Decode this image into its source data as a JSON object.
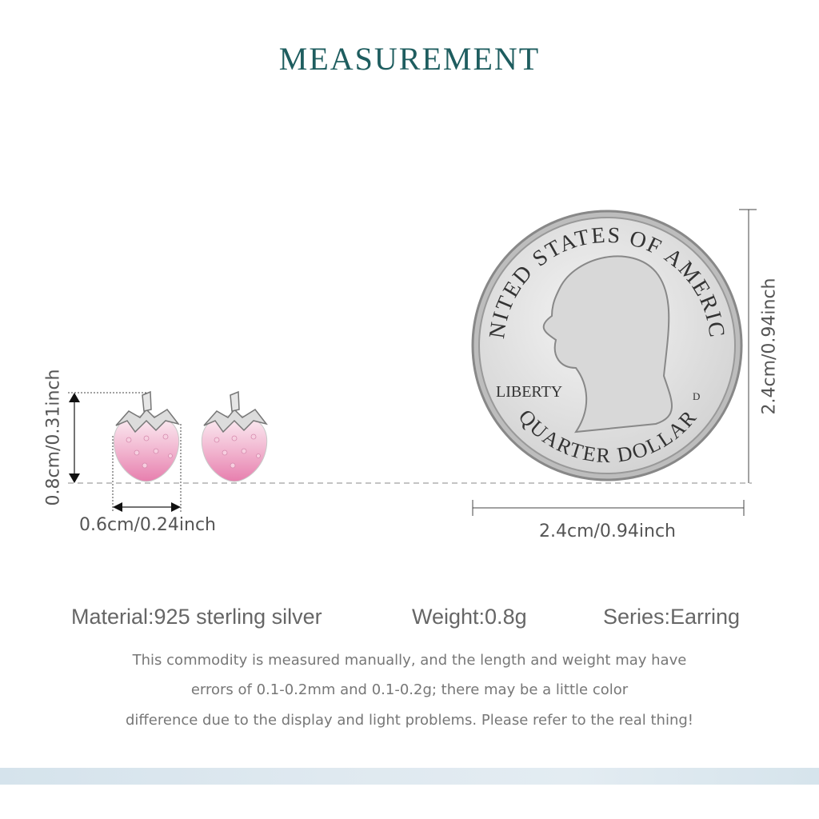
{
  "title": "MEASUREMENT",
  "earring": {
    "height_label": "0.8cm/0.31inch",
    "width_label": "0.6cm/0.24inch"
  },
  "coin": {
    "height_label": "2.4cm/0.94inch",
    "width_label": "2.4cm/0.94inch",
    "lettering_top": "UNITED STATES OF AMERICA",
    "lettering_bottom": "QUARTER DOLLAR",
    "lettering_left": "LIBERTY",
    "mint_mark": "D"
  },
  "specs": {
    "material": "Material:925 sterling silver",
    "weight": "Weight:0.8g",
    "series": "Series:Earring"
  },
  "note": {
    "line1": "This commodity is measured manually, and the length and weight may have",
    "line2": "errors of 0.1-0.2mm and 0.1-0.2g; there may be a little color",
    "line3": "difference due to the display and light problems. Please refer to the real thing!"
  },
  "colors": {
    "title": "#1e5d5f",
    "band": "#dbe7ee",
    "berry": "#f0a8c8"
  }
}
